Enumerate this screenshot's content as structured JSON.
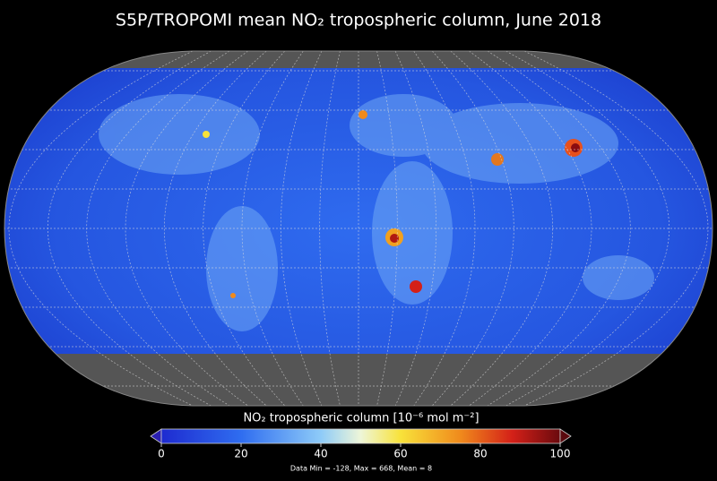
{
  "title": "S5P/TROPOMI mean NO₂ tropospheric column, June 2018",
  "colorbar": {
    "label": "NO₂ tropospheric column [10⁻⁶ mol m⁻²]",
    "lim": [
      0,
      100
    ],
    "ticks": [
      0,
      20,
      40,
      60,
      80,
      100
    ]
  },
  "footer": "Data Min = -128, Max = 668, Mean = 8"
}
